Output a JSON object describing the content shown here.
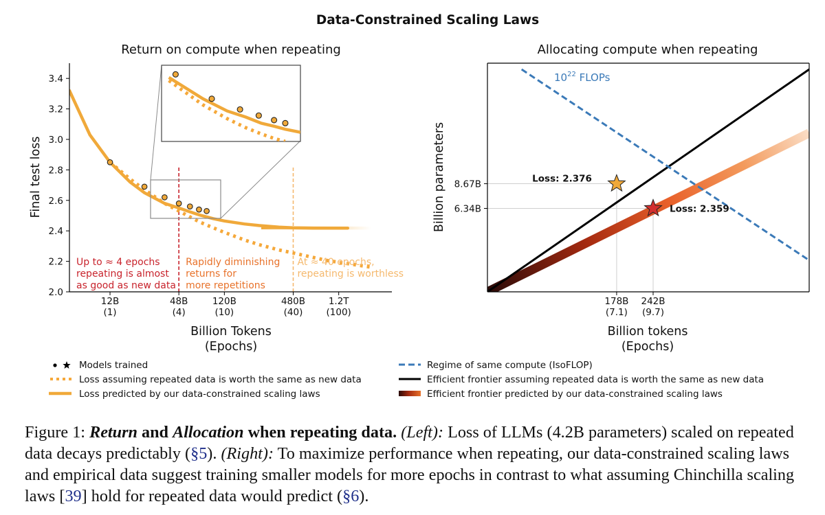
{
  "suptitle": "Data-Constrained Scaling Laws",
  "colors": {
    "orange": "#f0a93a",
    "dotted_orange": "#f5a83a",
    "red": "#c8232c",
    "mid_orange": "#e8722a",
    "light_orange": "#f5b96e",
    "blue": "#3b7ab8",
    "black": "#000000",
    "grid": "#cfcfcf"
  },
  "chart_data": [
    {
      "type": "line",
      "title": "Return on compute when repeating",
      "xlabel": "Billion Tokens",
      "xlabel2": "(Epochs)",
      "ylabel": "Final test loss",
      "xscale": "log",
      "xlim": [
        5.3,
        3500
      ],
      "ylim": [
        2.0,
        3.5
      ],
      "yticks": [
        "2.0",
        "2.2",
        "2.4",
        "2.6",
        "2.8",
        "3.0",
        "3.2",
        "3.4"
      ],
      "xticks": [
        {
          "x": 12,
          "label": "12B",
          "sub": "(1)"
        },
        {
          "x": 48,
          "label": "48B",
          "sub": "(4)"
        },
        {
          "x": 120,
          "label": "120B",
          "sub": "(10)"
        },
        {
          "x": 480,
          "label": "480B",
          "sub": "(40)"
        },
        {
          "x": 1200,
          "label": "1.2T",
          "sub": "(100)"
        }
      ],
      "series": [
        {
          "name": "Loss predicted by our data-constrained scaling laws",
          "style": "solid",
          "x": [
            5.3,
            8,
            12,
            18,
            24,
            36,
            48,
            60,
            72,
            96,
            120,
            180,
            240,
            360,
            480,
            720,
            960,
            1440
          ],
          "y": [
            3.32,
            3.03,
            2.85,
            2.72,
            2.65,
            2.58,
            2.55,
            2.525,
            2.505,
            2.48,
            2.465,
            2.445,
            2.435,
            2.425,
            2.42,
            2.418,
            2.418,
            2.418
          ]
        },
        {
          "name": "Loss assuming repeated data is worth the same as new data",
          "style": "dotted",
          "x": [
            12,
            18,
            24,
            36,
            48,
            72,
            96,
            120,
            180,
            240,
            360,
            480,
            720,
            960,
            1440,
            2400
          ],
          "y": [
            2.85,
            2.74,
            2.67,
            2.58,
            2.53,
            2.46,
            2.42,
            2.39,
            2.34,
            2.31,
            2.275,
            2.255,
            2.225,
            2.205,
            2.185,
            2.16
          ]
        }
      ],
      "models": {
        "x": [
          12,
          24,
          36,
          48,
          60,
          72,
          84
        ],
        "y": [
          2.85,
          2.69,
          2.62,
          2.58,
          2.56,
          2.54,
          2.53
        ]
      },
      "inset": {
        "xlim": [
          22,
          115
        ],
        "ylim": [
          2.48,
          2.73
        ],
        "solid": {
          "x": [
            24,
            36,
            48,
            60,
            72,
            84,
            96,
            115
          ],
          "y": [
            2.69,
            2.62,
            2.58,
            2.56,
            2.54,
            2.53,
            2.52,
            2.51
          ]
        },
        "dotted": {
          "x": [
            24,
            36,
            48,
            60,
            72,
            84,
            96
          ],
          "y": [
            2.68,
            2.6,
            2.555,
            2.525,
            2.505,
            2.49,
            2.48
          ]
        },
        "points": {
          "x": [
            26,
            40,
            56,
            70,
            84,
            96
          ],
          "y": [
            2.7,
            2.62,
            2.585,
            2.565,
            2.55,
            2.54
          ]
        }
      },
      "regions": [
        {
          "x": 48,
          "color": "red",
          "lines": [
            "Up to ≈ 4 epochs",
            "repeating is almost",
            "as good as new data"
          ]
        },
        {
          "x": 480,
          "color": "light_orange",
          "lines": [
            "Rapidly diminishing",
            "returns for",
            "more repetitions"
          ],
          "at_left": true,
          "text_color": "mid_orange"
        },
        {
          "x": 480,
          "color": "light_orange",
          "lines": [
            "At ≈ 40 epochs,",
            "repeating is worthless"
          ]
        }
      ]
    },
    {
      "type": "line",
      "title": "Allocating compute when repeating",
      "xlabel": "Billion tokens",
      "xlabel2": "(Epochs)",
      "ylabel": "Billion parameters",
      "xscale": "log",
      "yscale": "log",
      "xlim": [
        60,
        900
      ],
      "ylim": [
        2.2,
        40
      ],
      "yticks": [
        {
          "y": 8.67,
          "label": "8.67B"
        },
        {
          "y": 6.34,
          "label": "6.34B"
        }
      ],
      "xticks": [
        {
          "x": 178,
          "label": "178B",
          "sub": "(7.1)"
        },
        {
          "x": 242,
          "label": "242B",
          "sub": "(9.7)"
        }
      ],
      "isoflop_label": "10",
      "isoflop_exp": "22",
      "isoflop_unit": " FLOPs",
      "series": [
        {
          "name": "Regime of same compute (IsoFLOP)",
          "style": "dashed",
          "x": [
            80,
            900
          ],
          "y": [
            37,
            3.28
          ]
        },
        {
          "name": "Efficient frontier assuming repeated data is worth the same as new data",
          "style": "solid",
          "x": [
            60,
            900
          ],
          "y": [
            2.2,
            37
          ]
        },
        {
          "name": "Efficient frontier predicted by our data-constrained scaling laws",
          "style": "gradient",
          "x": [
            60,
            900
          ],
          "y": [
            2.2,
            16.5
          ]
        }
      ],
      "points": [
        {
          "x": 178,
          "y": 8.67,
          "label": "Loss: 2.376",
          "color": "#f0a93a"
        },
        {
          "x": 242,
          "y": 6.34,
          "label": "Loss: 2.359",
          "color": "#d32f2f"
        }
      ]
    }
  ],
  "legend_left": [
    {
      "marker": "dots",
      "text": "Models trained"
    },
    {
      "marker": "dotted",
      "text": "Loss assuming repeated data is worth the same as new data"
    },
    {
      "marker": "solid",
      "text": "Loss predicted by our data-constrained scaling laws"
    }
  ],
  "legend_right": [
    {
      "marker": "dashed",
      "text": "Regime of same compute (IsoFLOP)"
    },
    {
      "marker": "black",
      "text": "Efficient frontier assuming repeated data is worth the same as new data"
    },
    {
      "marker": "gradient",
      "text": "Efficient frontier predicted by our data-constrained scaling laws"
    }
  ],
  "caption": {
    "figure_label": "Figure 1: ",
    "b1": "Return",
    "b2": " and ",
    "b3": "Allocation",
    "b4": " when repeating data.",
    "i1": "(Left):",
    "t1": " Loss of LLMs (4.2B parameters) scaled on repeated data decays predictably (",
    "ref1": "§5",
    "t2": "). ",
    "i2": "(Right):",
    "t3": " To maximize performance when repeating, our data-constrained scaling laws and empirical data suggest training smaller models for more epochs in contrast to what assuming Chinchilla scaling laws [",
    "ref2": "39",
    "t4": "] hold for repeated data would predict (",
    "ref3": "§6",
    "t5": ")."
  }
}
